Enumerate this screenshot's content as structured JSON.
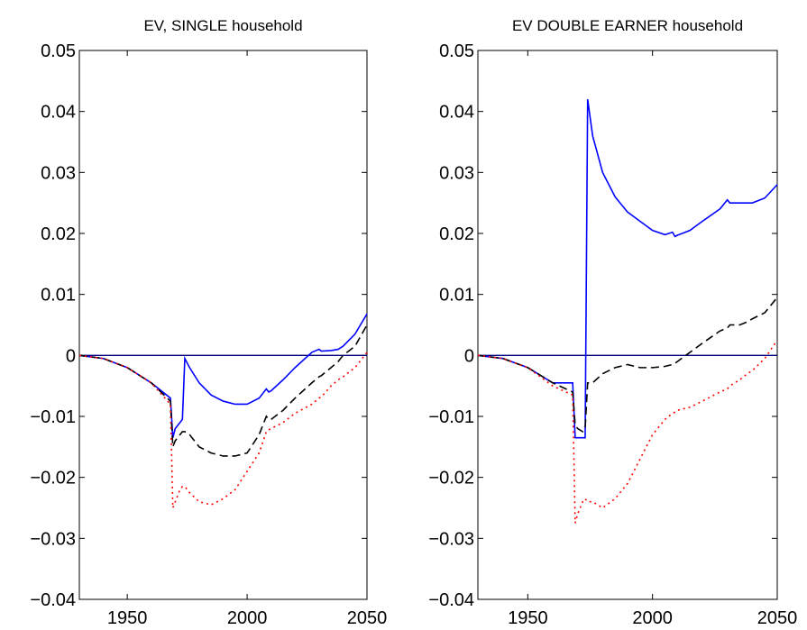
{
  "chart_data": [
    {
      "type": "line",
      "title": "EV, SINGLE household",
      "x": [
        1930,
        1940,
        1950,
        1960,
        1968,
        1969,
        1970,
        1972,
        1973,
        1974,
        1976,
        1980,
        1985,
        1990,
        1995,
        2000,
        2005,
        2008,
        2009,
        2010,
        2015,
        2020,
        2027,
        2030,
        2031,
        2035,
        2038,
        2040,
        2045,
        2050
      ],
      "series": [
        {
          "color": "#0000ff",
          "style": "solid",
          "values": [
            0,
            -0.0005,
            -0.002,
            -0.0045,
            -0.007,
            -0.0135,
            -0.012,
            -0.011,
            -0.0105,
            -0.0005,
            -0.002,
            -0.0045,
            -0.0065,
            -0.0075,
            -0.008,
            -0.008,
            -0.007,
            -0.0055,
            -0.006,
            -0.0058,
            -0.004,
            -0.002,
            0.0005,
            0.001,
            0.0007,
            0.0008,
            0.001,
            0.0015,
            0.0035,
            0.0068
          ]
        },
        {
          "color": "#000000",
          "style": "dashed",
          "values": [
            0,
            -0.0005,
            -0.002,
            -0.0045,
            -0.0075,
            -0.015,
            -0.014,
            -0.013,
            -0.0125,
            -0.0125,
            -0.013,
            -0.015,
            -0.016,
            -0.0165,
            -0.0165,
            -0.016,
            -0.013,
            -0.01,
            -0.0105,
            -0.0105,
            -0.009,
            -0.007,
            -0.0045,
            -0.0035,
            -0.0033,
            -0.002,
            -0.001,
            0,
            0.0015,
            0.005
          ]
        },
        {
          "color": "#ff0000",
          "style": "dotted",
          "values": [
            0,
            -0.0005,
            -0.002,
            -0.0045,
            -0.008,
            -0.025,
            -0.024,
            -0.022,
            -0.0215,
            -0.0215,
            -0.0225,
            -0.024,
            -0.0245,
            -0.0235,
            -0.022,
            -0.019,
            -0.016,
            -0.0125,
            -0.0122,
            -0.012,
            -0.011,
            -0.0095,
            -0.008,
            -0.007,
            -0.0068,
            -0.005,
            -0.004,
            -0.0035,
            -0.002,
            0.0005
          ]
        }
      ],
      "reference_line": {
        "value": 0,
        "color": "#000080"
      },
      "xlim": [
        1930,
        2050
      ],
      "xticks": [
        1950,
        2000,
        2050
      ],
      "ylim": [
        -0.04,
        0.05
      ],
      "yticks": [
        {
          "value": -0.04,
          "label": "−0.04"
        },
        {
          "value": -0.03,
          "label": "−0.03"
        },
        {
          "value": -0.02,
          "label": "−0.02"
        },
        {
          "value": -0.01,
          "label": "−0.01"
        },
        0,
        0.01,
        0.02,
        0.03,
        0.04,
        0.05
      ],
      "grid": false
    },
    {
      "type": "line",
      "title": "EV DOUBLE EARNER household",
      "x": [
        1930,
        1940,
        1950,
        1960,
        1968,
        1969,
        1970,
        1972,
        1973,
        1974,
        1976,
        1980,
        1985,
        1990,
        1995,
        2000,
        2005,
        2008,
        2009,
        2010,
        2015,
        2020,
        2027,
        2030,
        2031,
        2035,
        2038,
        2040,
        2045,
        2050
      ],
      "series": [
        {
          "color": "#0000ff",
          "style": "solid",
          "values": [
            0,
            -0.0005,
            -0.002,
            -0.0045,
            -0.0045,
            -0.0135,
            -0.0135,
            -0.0135,
            -0.0135,
            0.042,
            0.036,
            0.03,
            0.026,
            0.0235,
            0.022,
            0.0205,
            0.0198,
            0.0202,
            0.0195,
            0.0197,
            0.0205,
            0.022,
            0.024,
            0.0255,
            0.025,
            0.025,
            0.025,
            0.025,
            0.0258,
            0.028
          ]
        },
        {
          "color": "#000000",
          "style": "dashed",
          "values": [
            0,
            -0.0005,
            -0.002,
            -0.0045,
            -0.006,
            -0.0115,
            -0.012,
            -0.0125,
            -0.012,
            -0.0045,
            -0.0045,
            -0.003,
            -0.002,
            -0.0015,
            -0.002,
            -0.002,
            -0.0018,
            -0.0015,
            -0.0013,
            -0.001,
            0.0005,
            0.002,
            0.004,
            0.0045,
            0.005,
            0.005,
            0.0055,
            0.006,
            0.007,
            0.0095
          ]
        },
        {
          "color": "#ff0000",
          "style": "dotted",
          "values": [
            0,
            -0.0005,
            -0.002,
            -0.005,
            -0.0065,
            -0.0275,
            -0.026,
            -0.024,
            -0.0235,
            -0.024,
            -0.024,
            -0.025,
            -0.0235,
            -0.021,
            -0.017,
            -0.013,
            -0.0105,
            -0.0095,
            -0.0093,
            -0.009,
            -0.0085,
            -0.0075,
            -0.006,
            -0.0055,
            -0.005,
            -0.004,
            -0.003,
            -0.0025,
            -0.0005,
            0.0025
          ]
        }
      ],
      "reference_line": {
        "value": 0,
        "color": "#000080"
      },
      "xlim": [
        1930,
        2050
      ],
      "xticks": [
        1950,
        2000,
        2050
      ],
      "ylim": [
        -0.04,
        0.05
      ],
      "yticks": [
        {
          "value": -0.04,
          "label": "−0.04"
        },
        {
          "value": -0.03,
          "label": "−0.03"
        },
        {
          "value": -0.02,
          "label": "−0.02"
        },
        {
          "value": -0.01,
          "label": "−0.01"
        },
        0,
        0.01,
        0.02,
        0.03,
        0.04,
        0.05
      ],
      "grid": false
    }
  ]
}
